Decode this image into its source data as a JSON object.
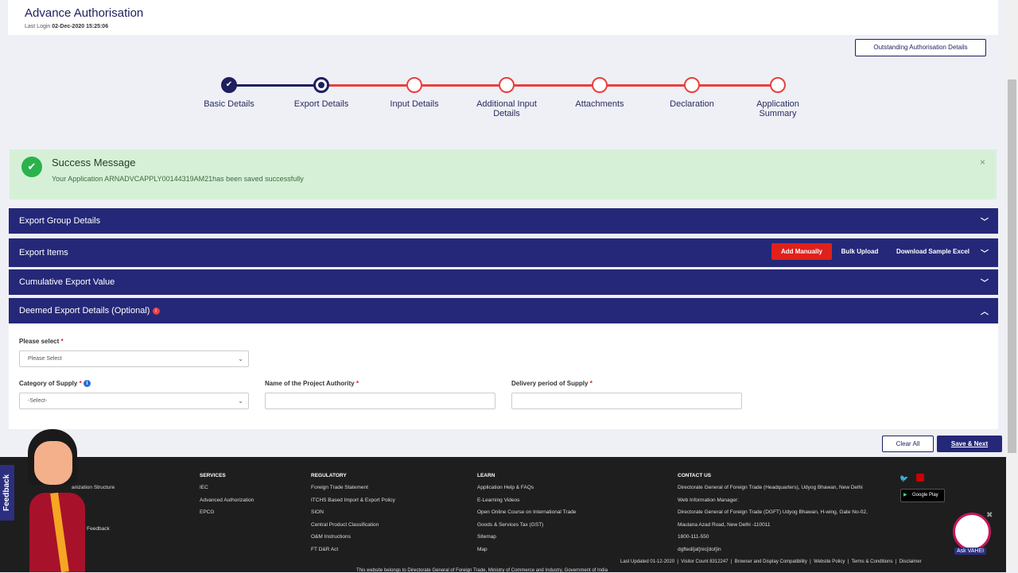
{
  "header": {
    "title": "Advance Authorisation",
    "last_login_label": "Last Login",
    "last_login_value": "02-Dec-2020 15:25:06"
  },
  "outstanding_button": "Outstanding Authorisation Details",
  "steps": [
    {
      "label": "Basic Details",
      "state": "done"
    },
    {
      "label": "Export Details",
      "state": "current"
    },
    {
      "label": "Input Details",
      "state": "pending"
    },
    {
      "label": "Additional Input Details",
      "state": "pending"
    },
    {
      "label": "Attachments",
      "state": "pending"
    },
    {
      "label": "Declaration",
      "state": "pending"
    },
    {
      "label": "Application Summary",
      "state": "pending"
    }
  ],
  "success": {
    "title": "Success Message",
    "message": "Your Application ARNADVCAPPLY00144319AM21has been saved successfully",
    "close": "×"
  },
  "accordions": {
    "export_group": "Export Group Details",
    "export_items": "Export Items",
    "cumulative": "Cumulative Export Value",
    "deemed": "Deemed Export Details (Optional)"
  },
  "export_item_actions": {
    "add_manually": "Add Manually",
    "bulk_upload": "Bulk Upload",
    "download_sample": "Download Sample Excel"
  },
  "form": {
    "please_select_label": "Please select",
    "please_select_value": "Please Select",
    "category_label": "Category of Supply",
    "category_value": "-Select-",
    "project_authority_label": "Name of the Project Authority",
    "project_authority_value": "",
    "delivery_label": "Delivery period of Supply",
    "delivery_value": "",
    "required": "*"
  },
  "actions": {
    "clear": "Clear All",
    "save": "Save & Next"
  },
  "feedback": "Feedback",
  "footer": {
    "col1": [
      "anization Structure",
      "tions / Feedback"
    ],
    "services": {
      "title": "SERVICES",
      "items": [
        "IEC",
        "Advanced Authorization",
        "EPCG"
      ]
    },
    "regulatory": {
      "title": "REGULATORY",
      "items": [
        "Foreign Trade Statement",
        "ITCHS Based Import & Export Policy",
        "SION",
        "Central Product Classification",
        "O&M Instructions",
        "FT D&R Act"
      ]
    },
    "learn": {
      "title": "LEARN",
      "items": [
        "Application Help & FAQs",
        "E-Learning Videos",
        "Open Online Course on International Trade",
        "Goods & Services Tax (GST)",
        "Sitemap",
        "Map"
      ]
    },
    "contact": {
      "title": "CONTACT US",
      "items": [
        "Directorate General of Foreign Trade (Headquarters), Udyog Bhawan, New Delhi",
        "Web Information Manager:",
        "Directorate General of Foreign Trade (DGFT) Udyog Bhawan, H-wing, Gate No-02,",
        "Maulana Azad Road, New Delhi -110011",
        "1800-111-550",
        "dgftedi[at]nic[dot]in"
      ]
    },
    "google_play": "Google Play",
    "bottom_links": [
      "Last Updated 01-12-2020",
      "Visitor Count  8312247",
      "Browser and Display Compatibility",
      "Website Policy",
      "Terms & Conditions",
      "Disclaimer"
    ],
    "ownership": "This website belongs to Directorate General of Foreign Trade, Ministry of Commerce and Industry, Government of India",
    "ask_vahei": "Ask VAHEI"
  },
  "colors": {
    "primary": "#252878",
    "accent_red": "#e8403f",
    "success_bg": "#d6f0d8"
  }
}
